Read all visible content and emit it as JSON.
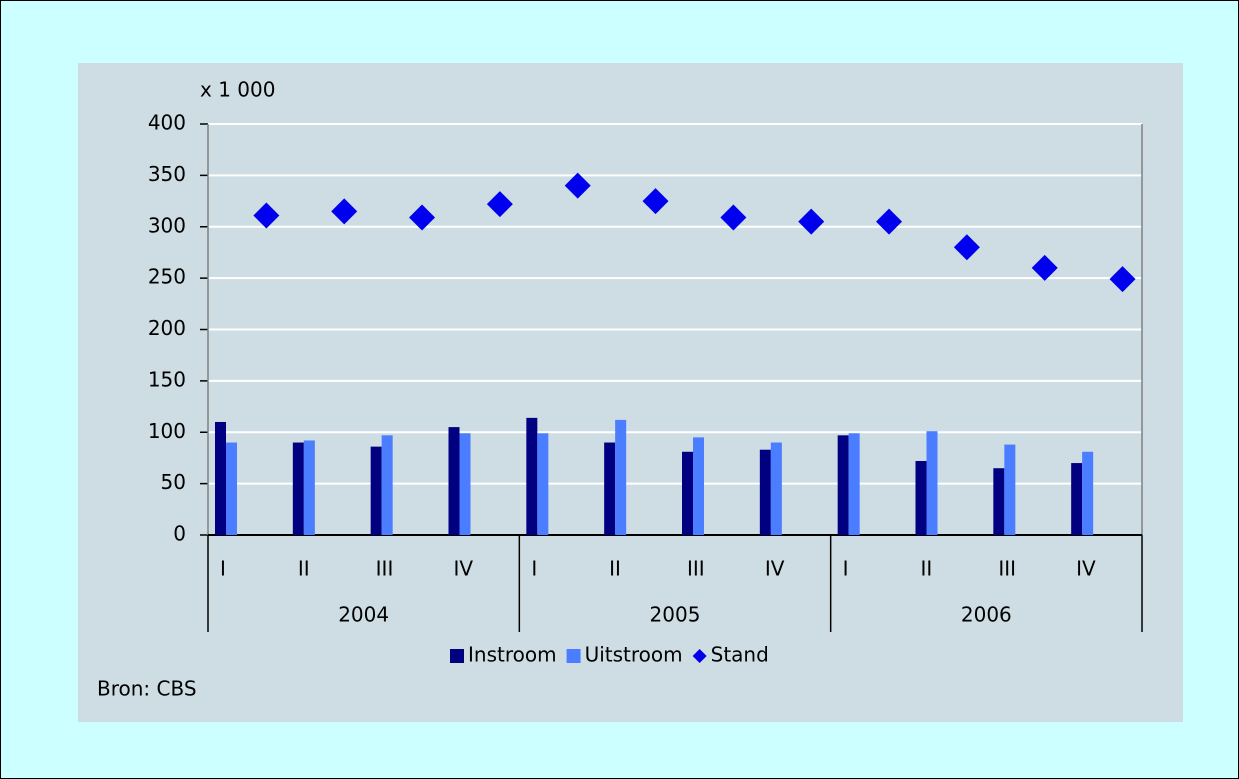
{
  "chart_data": {
    "type": "bar",
    "unit_label": "x 1 000",
    "source": "Bron: CBS",
    "categories": [
      "I",
      "II",
      "III",
      "IV",
      "I",
      "II",
      "III",
      "IV",
      "I",
      "II",
      "III",
      "IV"
    ],
    "category_groups": [
      "2004",
      "2005",
      "2006"
    ],
    "series": [
      {
        "name": "Instroom",
        "color": "#000080",
        "values": [
          110,
          90,
          86,
          105,
          114,
          90,
          81,
          83,
          97,
          72,
          65,
          70
        ]
      },
      {
        "name": "Uitstroom",
        "color": "#4a7dff",
        "values": [
          90,
          92,
          97,
          99,
          99,
          112,
          95,
          90,
          99,
          101,
          88,
          81
        ]
      },
      {
        "name": "Stand",
        "color": "#0000ee",
        "mark": "diamond",
        "values": [
          311,
          315,
          309,
          322,
          340,
          325,
          309,
          305,
          305,
          280,
          260,
          249
        ]
      }
    ],
    "ylim": [
      0,
      400
    ],
    "yticks": [
      0,
      50,
      100,
      150,
      200,
      250,
      300,
      350,
      400
    ],
    "grid": true
  }
}
